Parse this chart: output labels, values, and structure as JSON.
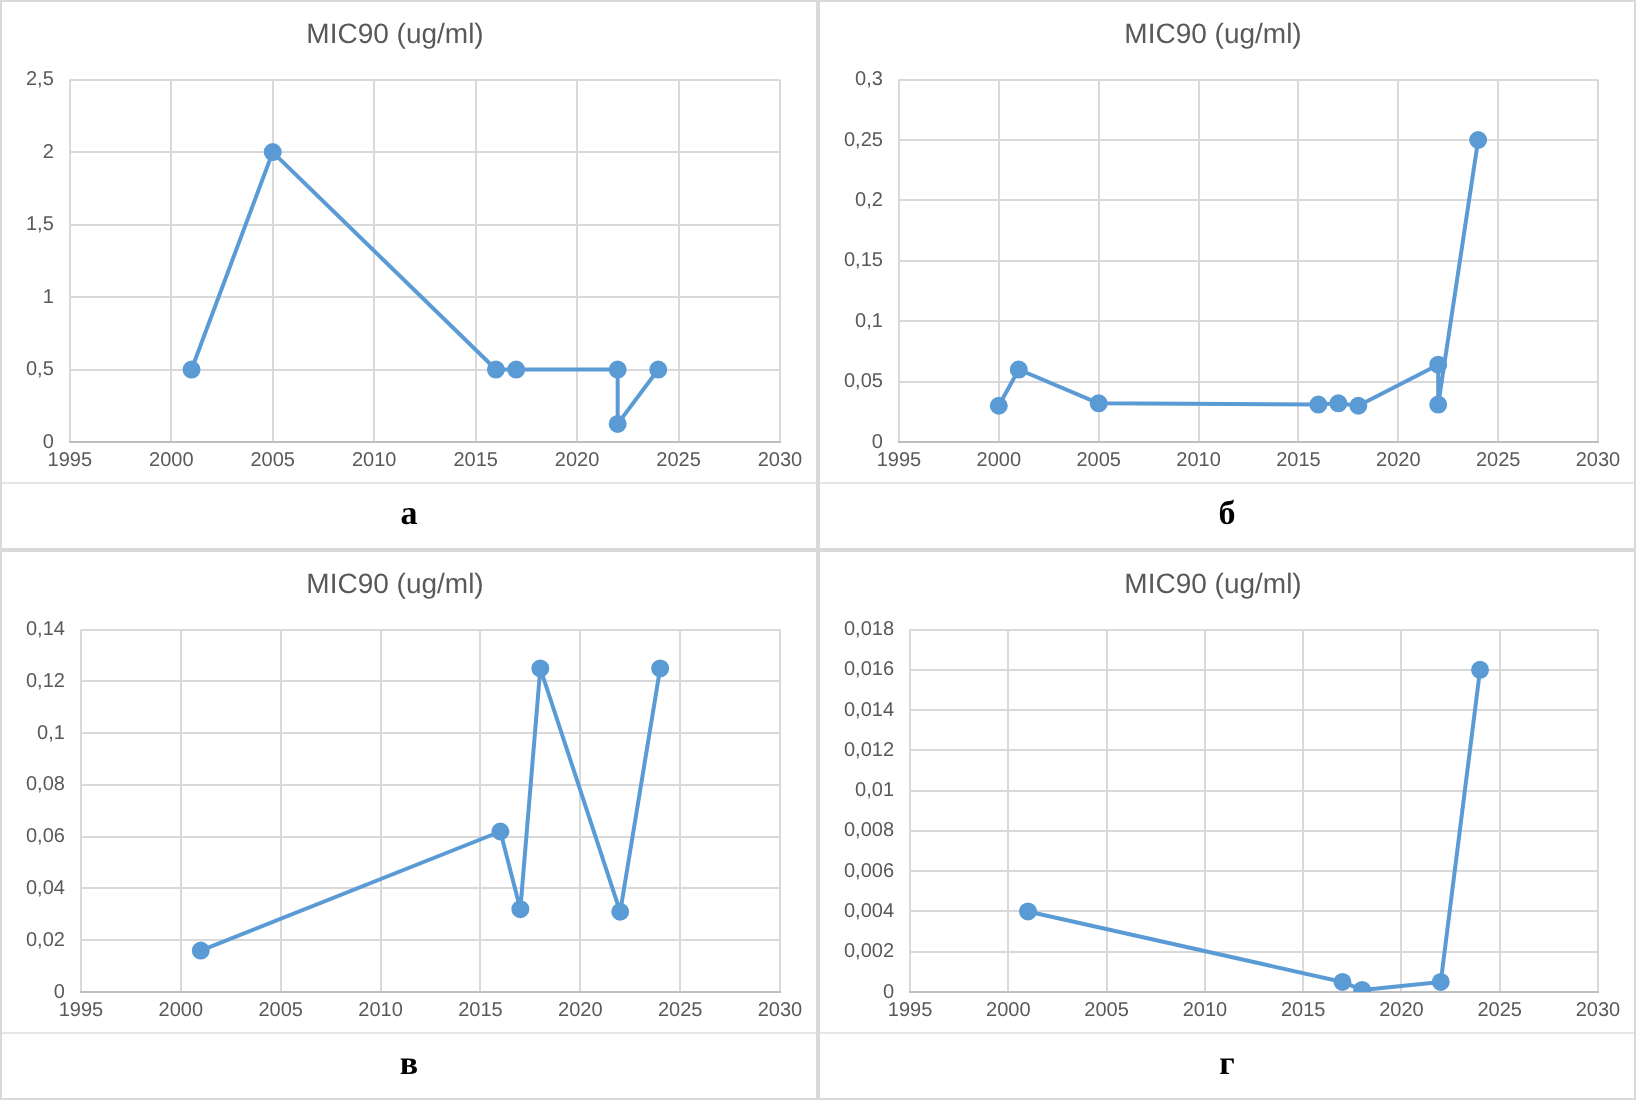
{
  "chart_data": [
    {
      "type": "line",
      "title": "MIC90 (ug/ml)",
      "annotations": [
        "а"
      ],
      "marker": "circle",
      "line_style": "solid",
      "grid": true,
      "legend": false,
      "xlim": [
        1995,
        2030
      ],
      "xticks": [
        1995,
        2000,
        2005,
        2010,
        2015,
        2020,
        2025,
        2030
      ],
      "ylim": [
        0,
        2.5
      ],
      "yticks": [
        0,
        {
          "value": 0.5,
          "label": "0,5"
        },
        1,
        {
          "value": 1.5,
          "label": "1,5"
        },
        2,
        {
          "value": 2.5,
          "label": "2,5"
        }
      ],
      "series": [
        {
          "color": "#5b9bd5",
          "x": [
            2001,
            2005,
            2016,
            2017,
            2022,
            2022,
            2024
          ],
          "values": [
            0.5,
            2,
            0.5,
            0.5,
            0.5,
            0.125,
            0.5
          ]
        }
      ]
    },
    {
      "type": "line",
      "title": "MIC90 (ug/ml)",
      "annotations": [
        "б"
      ],
      "marker": "circle",
      "line_style": "solid",
      "grid": true,
      "legend": false,
      "xlim": [
        1995,
        2030
      ],
      "xticks": [
        1995,
        2000,
        2005,
        2010,
        2015,
        2020,
        2025,
        2030
      ],
      "ylim": [
        0,
        0.3
      ],
      "yticks": [
        0,
        {
          "value": 0.05,
          "label": "0,05"
        },
        {
          "value": 0.1,
          "label": "0,1"
        },
        {
          "value": 0.15,
          "label": "0,15"
        },
        {
          "value": 0.2,
          "label": "0,2"
        },
        {
          "value": 0.25,
          "label": "0,25"
        },
        {
          "value": 0.3,
          "label": "0,3"
        }
      ],
      "series": [
        {
          "color": "#5b9bd5",
          "x": [
            2000,
            2001,
            2005,
            2016,
            2017,
            2018,
            2022,
            2022,
            2024
          ],
          "values": [
            0.03,
            0.06,
            0.032,
            0.031,
            0.032,
            0.03,
            0.064,
            0.031,
            0.25
          ]
        }
      ]
    },
    {
      "type": "line",
      "title": "MIC90 (ug/ml)",
      "annotations": [
        "в"
      ],
      "marker": "circle",
      "line_style": "solid",
      "grid": true,
      "legend": false,
      "xlim": [
        1995,
        2030
      ],
      "xticks": [
        1995,
        2000,
        2005,
        2010,
        2015,
        2020,
        2025,
        2030
      ],
      "ylim": [
        0,
        0.14
      ],
      "yticks": [
        0,
        {
          "value": 0.02,
          "label": "0,02"
        },
        {
          "value": 0.04,
          "label": "0,04"
        },
        {
          "value": 0.06,
          "label": "0,06"
        },
        {
          "value": 0.08,
          "label": "0,08"
        },
        {
          "value": 0.1,
          "label": "0,1"
        },
        {
          "value": 0.12,
          "label": "0,12"
        },
        {
          "value": 0.14,
          "label": "0,14"
        }
      ],
      "series": [
        {
          "color": "#5b9bd5",
          "x": [
            2001,
            2016,
            2017,
            2018,
            2022,
            2024
          ],
          "values": [
            0.016,
            0.062,
            0.032,
            0.125,
            0.031,
            0.125
          ]
        }
      ]
    },
    {
      "type": "line",
      "title": "MIC90 (ug/ml)",
      "annotations": [
        "г"
      ],
      "marker": "circle",
      "line_style": "solid",
      "grid": true,
      "legend": false,
      "xlim": [
        1995,
        2030
      ],
      "xticks": [
        1995,
        2000,
        2005,
        2010,
        2015,
        2020,
        2025,
        2030
      ],
      "ylim": [
        0,
        0.018
      ],
      "yticks": [
        0,
        {
          "value": 0.002,
          "label": "0,002"
        },
        {
          "value": 0.004,
          "label": "0,004"
        },
        {
          "value": 0.006,
          "label": "0,006"
        },
        {
          "value": 0.008,
          "label": "0,008"
        },
        {
          "value": 0.01,
          "label": "0,01"
        },
        {
          "value": 0.012,
          "label": "0,012"
        },
        {
          "value": 0.014,
          "label": "0,014"
        },
        {
          "value": 0.016,
          "label": "0,016"
        },
        {
          "value": 0.018,
          "label": "0,018"
        }
      ],
      "series": [
        {
          "color": "#5b9bd5",
          "x": [
            2001,
            2017,
            2018,
            2022,
            2024
          ],
          "values": [
            0.004,
            0.0005,
            0.0001,
            0.0005,
            0.016
          ]
        }
      ]
    }
  ]
}
